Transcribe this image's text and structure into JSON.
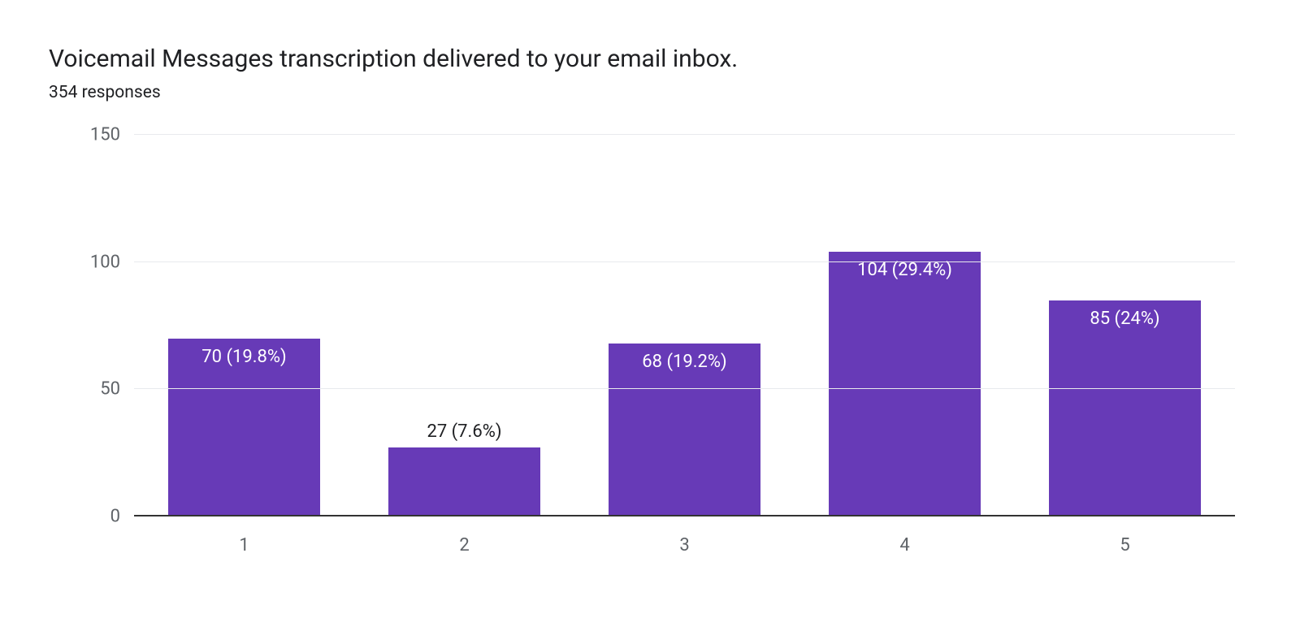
{
  "title": "Voicemail Messages transcription delivered to your email inbox.",
  "subtitle": "354 responses",
  "chart": {
    "type": "bar",
    "categories": [
      "1",
      "2",
      "3",
      "4",
      "5"
    ],
    "values": [
      70,
      27,
      68,
      104,
      85
    ],
    "percentages": [
      "19.8%",
      "7.6%",
      "19.2%",
      "29.4%",
      "24%"
    ],
    "labels": [
      "70 (19.8%)",
      "27 (7.6%)",
      "68 (19.2%)",
      "104 (29.4%)",
      "85 (24%)"
    ],
    "bar_color": "#673ab7",
    "label_text_color_inside": "#ffffff",
    "label_text_color_outside": "#202124",
    "ylim": [
      0,
      150
    ],
    "ytick_step": 50,
    "yticks": [
      "0",
      "50",
      "100",
      "150"
    ],
    "grid_color": "#e8eaed",
    "baseline_color": "#333333",
    "background_color": "#ffffff",
    "title_fontsize": 30,
    "subtitle_fontsize": 21,
    "axis_fontsize": 22,
    "label_fontsize": 22,
    "bar_width_ratio": 0.69,
    "label_above_threshold": 30
  }
}
